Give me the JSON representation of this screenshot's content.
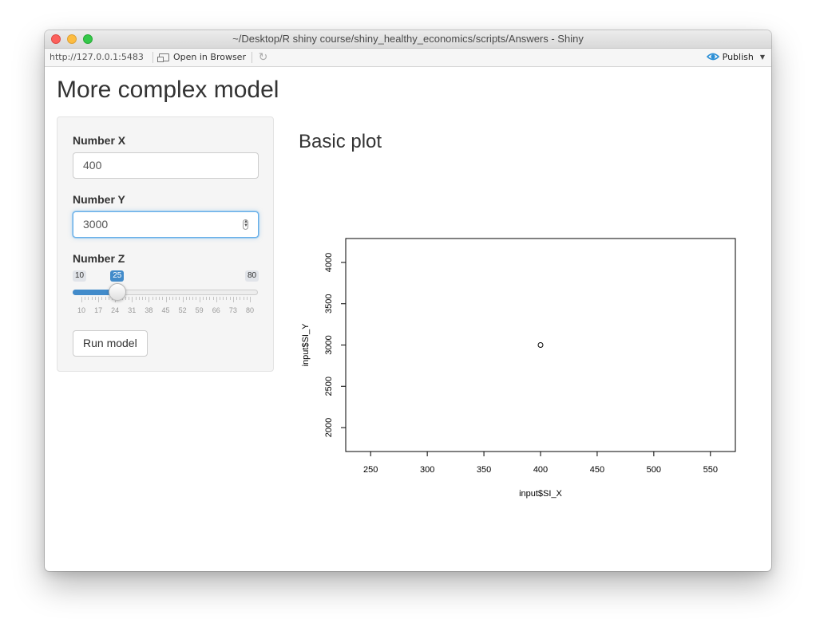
{
  "window": {
    "title": "~/Desktop/R shiny course/shiny_healthy_economics/scripts/Answers - Shiny"
  },
  "toolbar": {
    "url": "http://127.0.0.1:5483",
    "open_browser_label": "Open in Browser",
    "publish_label": "Publish"
  },
  "page": {
    "title": "More complex model"
  },
  "sidebar": {
    "x_label": "Number X",
    "x_value": "400",
    "y_label": "Number Y",
    "y_value": "3000",
    "z_label": "Number Z",
    "slider": {
      "min": "10",
      "max": "80",
      "value": "25",
      "value_num": 25,
      "min_num": 10,
      "max_num": 80,
      "tick_labels": [
        "10",
        "17",
        "24",
        "31",
        "38",
        "45",
        "52",
        "59",
        "66",
        "73",
        "80"
      ]
    },
    "run_label": "Run model"
  },
  "plot_heading": "Basic plot",
  "chart_data": {
    "type": "scatter",
    "title": "",
    "xlabel": "input$SI_X",
    "ylabel": "input$SI_Y",
    "xlim": [
      228,
      572
    ],
    "ylim": [
      1710,
      4290
    ],
    "x_ticks": [
      "250",
      "300",
      "350",
      "400",
      "450",
      "500",
      "550"
    ],
    "y_ticks": [
      "2000",
      "2500",
      "3000",
      "3500",
      "4000"
    ],
    "points": [
      {
        "x": 400,
        "y": 3000
      }
    ],
    "grid": false,
    "marker": "open-circle"
  }
}
